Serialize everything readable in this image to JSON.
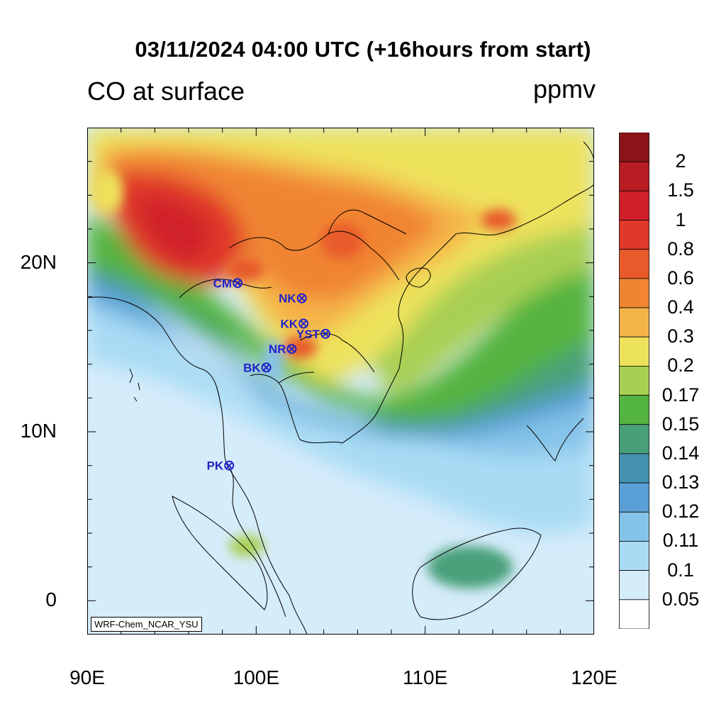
{
  "title": "03/11/2024 04:00 UTC (+16hours from start)",
  "subtitle_left": "CO at surface",
  "subtitle_right": "ppmv",
  "credit": "WRF-Chem_NCAR_YSU",
  "map": {
    "lon_range": [
      90,
      120
    ],
    "lat_range": [
      -2,
      28
    ],
    "x_ticks": [
      {
        "lon": 90,
        "label": "90E"
      },
      {
        "lon": 100,
        "label": "100E"
      },
      {
        "lon": 110,
        "label": "110E"
      },
      {
        "lon": 120,
        "label": "120E"
      }
    ],
    "y_ticks": [
      {
        "lat": 0,
        "label": "0"
      },
      {
        "lat": 10,
        "label": "10N"
      },
      {
        "lat": 20,
        "label": "20N"
      }
    ],
    "stations": [
      {
        "code": "CM",
        "lon": 98.9,
        "lat": 18.8
      },
      {
        "code": "NK",
        "lon": 102.7,
        "lat": 17.9
      },
      {
        "code": "KK",
        "lon": 102.8,
        "lat": 16.4
      },
      {
        "code": "YST",
        "lon": 104.1,
        "lat": 15.8
      },
      {
        "code": "NR",
        "lon": 102.1,
        "lat": 14.9
      },
      {
        "code": "BK",
        "lon": 100.6,
        "lat": 13.8
      },
      {
        "code": "PK",
        "lon": 98.4,
        "lat": 8.0
      }
    ]
  },
  "colorbar": {
    "labels": [
      "2",
      "1.5",
      "1",
      "0.8",
      "0.6",
      "0.4",
      "0.3",
      "0.2",
      "0.17",
      "0.15",
      "0.14",
      "0.13",
      "0.12",
      "0.11",
      "0.1",
      "0.05"
    ],
    "colors": [
      "#8b1419",
      "#b71c22",
      "#d0202a",
      "#e0392c",
      "#e85a2a",
      "#f08433",
      "#f5b44a",
      "#ede25c",
      "#a8cf52",
      "#54b440",
      "#48a07a",
      "#4592b0",
      "#5aa0d6",
      "#86c3e9",
      "#a9dcf4",
      "#d5ecfa",
      "#ffffff"
    ]
  }
}
